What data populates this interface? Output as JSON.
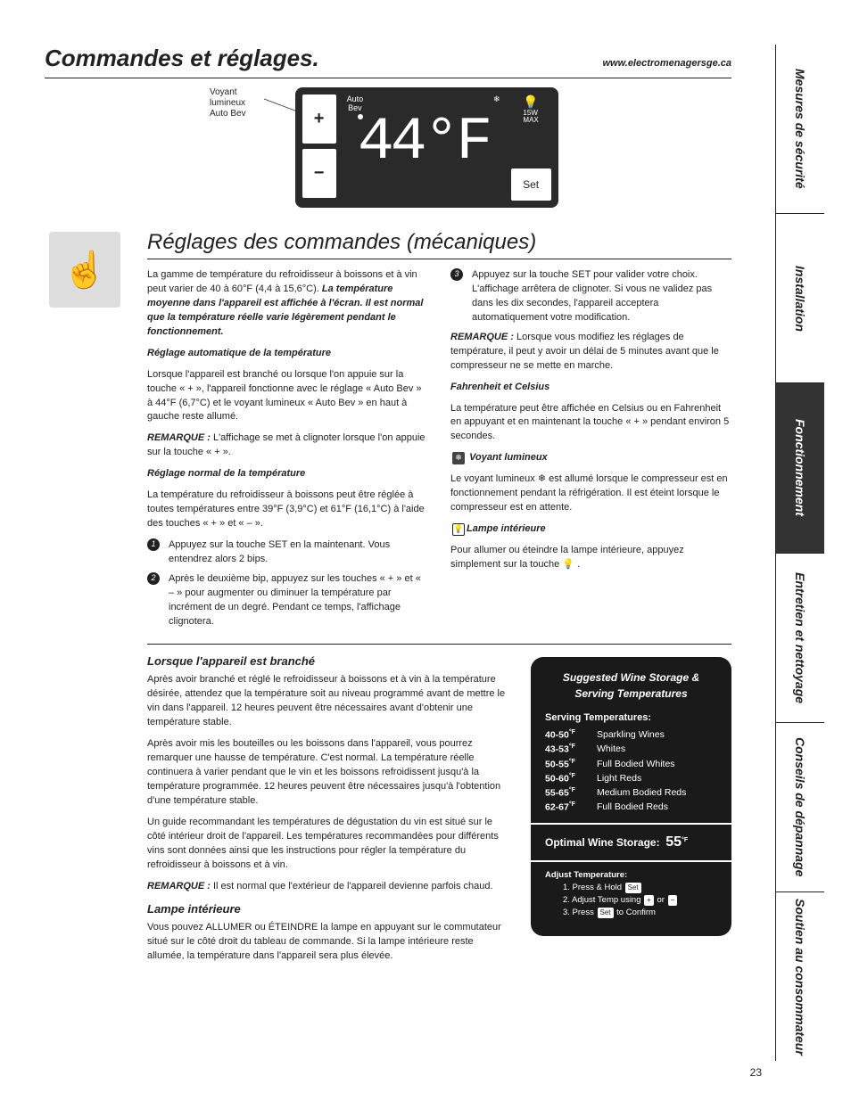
{
  "header": {
    "title": "Commandes et réglages.",
    "url": "www.electromenagersge.ca"
  },
  "lcd_caption": {
    "l1": "Voyant",
    "l2": "lumineux",
    "l3": "Auto Bev"
  },
  "lcd": {
    "auto_bev": "Auto\nBev",
    "temp": "44°F",
    "bulb_max": "15W\nMAX",
    "set": "Set",
    "snow": "❄"
  },
  "sub_header": "Réglages des commandes (mécaniques)",
  "leftcol": {
    "p1a": "La gamme de température du refroidisseur à boissons et à vin peut varier de 40 à 60°F (4,4 à 15,6°C). ",
    "p1b": "La température moyenne dans l'appareil est affichée à l'écran. Il est normal que la température réelle varie légèrement pendant le fonctionnement.",
    "h1": "Réglage automatique de la température",
    "p2": "Lorsque l'appareil est branché ou lorsque l'on appuie sur la touche « + », l'appareil fonctionne avec le réglage « Auto Bev » à 44°F (6,7°C) et le voyant lumineux « Auto Bev » en haut à gauche reste allumé.",
    "p3a": "REMARQUE : ",
    "p3b": "L'affichage se met à clignoter lorsque l'on appuie sur la touche « + ».",
    "h2": "Réglage normal de la température",
    "p4": "La température du refroidisseur à boissons peut être réglée à toutes températures entre 39°F (3,9°C) et 61°F (16,1°C) à l'aide des touches « + » et « – ».",
    "b1": "Appuyez sur la touche SET en la maintenant. Vous entendrez alors 2 bips.",
    "b2": "Après le deuxième bip, appuyez sur les touches « + » et « – » pour augmenter ou diminuer la température par incrément de un degré. Pendant ce temps, l'affichage clignotera."
  },
  "rightcol": {
    "b3": "Appuyez sur la touche SET pour valider votre choix. L'affichage arrêtera de clignoter. Si vous ne validez pas dans les dix secondes, l'appareil acceptera automatiquement votre modification.",
    "p1a": "REMARQUE : ",
    "p1b": "Lorsque vous modifiez les réglages de température, il peut y avoir un délai de 5 minutes avant que le compresseur ne se mette en marche.",
    "h1": "Fahrenheit et Celsius",
    "p2": "La température peut être affichée en Celsius ou en Fahrenheit en appuyant et en maintenant la touche « + » pendant environ 5 secondes.",
    "h2": "Voyant lumineux",
    "p3": "Le voyant lumineux ❄ est allumé lorsque le compresseur est en fonctionnement pendant la réfrigération. Il est éteint lorsque le compresseur est en attente.",
    "h3": "Lampe intérieure",
    "p4": "Pour allumer ou éteindre la lampe intérieure, appuyez simplement sur la touche 💡 ."
  },
  "section2": {
    "h1": "Lorsque l'appareil est branché",
    "p1": "Après avoir branché et réglé le refroidisseur à boissons et à vin à la température désirée, attendez que la température soit au niveau programmé avant de mettre le vin dans l'appareil. 12 heures peuvent être nécessaires avant d'obtenir une température stable.",
    "p2": "Après avoir mis les bouteilles ou les boissons dans l'appareil, vous pourrez remarquer une hausse de température. C'est normal. La température réelle continuera à varier pendant que le vin et les boissons refroidissent jusqu'à la température programmée. 12 heures peuvent être nécessaires jusqu'à l'obtention d'une température stable.",
    "p3": "Un guide recommandant les températures de dégustation du vin est situé sur le côté intérieur droit de l'appareil. Les températures recommandées pour différents vins sont données ainsi que les instructions pour régler la température du refroidisseur à boissons et à vin.",
    "p4a": "REMARQUE : ",
    "p4b": "Il est normal que l'extérieur de l'appareil devienne parfois chaud.",
    "h2": "Lampe intérieure",
    "p5": "Vous pouvez ALLUMER ou ÉTEINDRE la lampe en appuyant sur le commutateur situé sur le côté droit du tableau de commande. Si la lampe intérieure reste allumée, la température dans l'appareil sera plus élevée."
  },
  "wine": {
    "title": "Suggested Wine Storage & Serving Temperatures",
    "serving_h": "Serving Temperatures:",
    "rows": [
      {
        "range": "40-50",
        "label": "Sparkling Wines"
      },
      {
        "range": "43-53",
        "label": "Whites"
      },
      {
        "range": "50-55",
        "label": "Full Bodied Whites"
      },
      {
        "range": "50-60",
        "label": "Light Reds"
      },
      {
        "range": "55-65",
        "label": "Medium Bodied Reds"
      },
      {
        "range": "62-67",
        "label": "Full Bodied Reds"
      }
    ],
    "optimal_l": "Optimal Wine Storage:",
    "optimal_v": "55",
    "adj_h": "Adjust Temperature:",
    "adj1": "1. Press & Hold",
    "adj2": "2. Adjust Temp using",
    "adj2b": "or",
    "adj3": "3. Press",
    "adj3b": "to Confirm"
  },
  "tabs": [
    "Mesures de sécurité",
    "Installation",
    "Fonctionnement",
    "Entretien et nettoyage",
    "Conseils de dépannage",
    "Soutien au consommateur"
  ],
  "pagenum": "23"
}
